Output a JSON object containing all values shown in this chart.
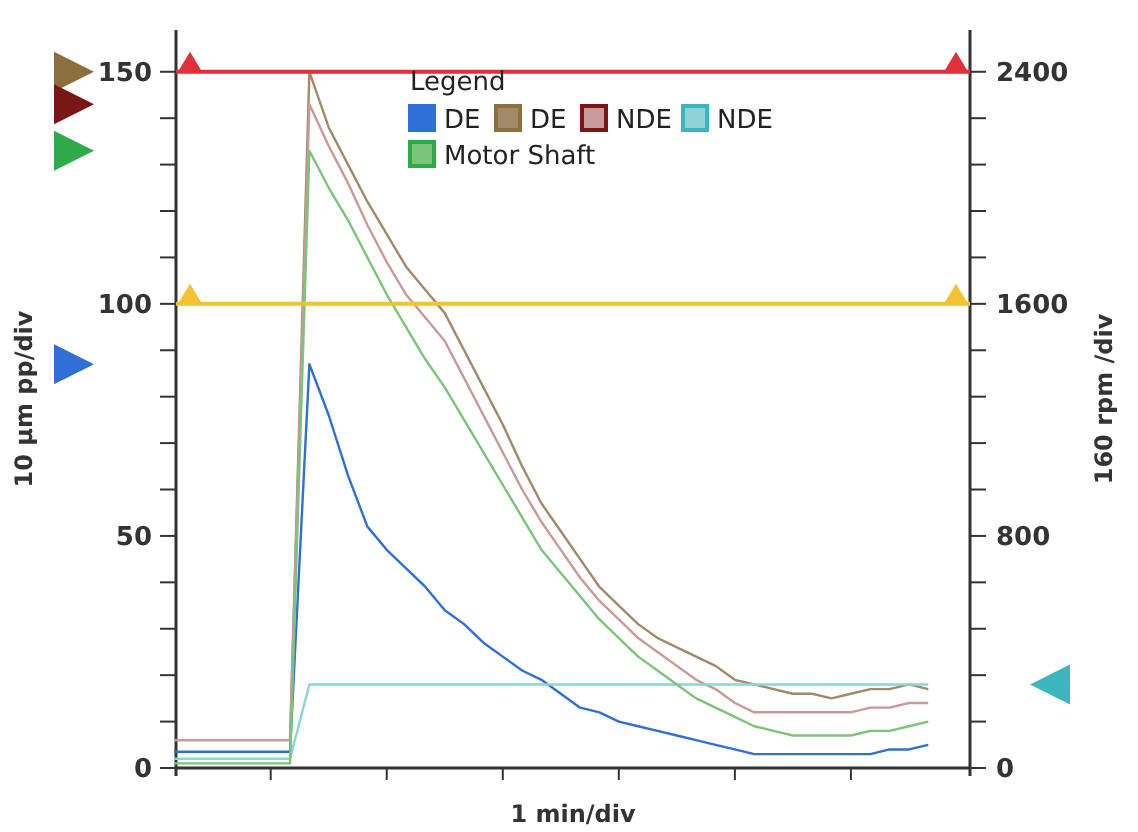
{
  "chart_data": {
    "type": "line",
    "xlabel": "1 min/div",
    "ylabel": "10 µm pp/div",
    "y2label": "160 rpm /div",
    "legend_title": "Legend",
    "legend": "top",
    "categories": [
      null,
      null,
      null,
      null,
      null,
      null,
      null,
      null,
      null,
      null,
      null,
      null,
      null,
      null,
      null,
      null,
      null,
      null,
      null,
      null,
      null,
      null,
      null,
      null,
      null,
      null,
      null,
      null,
      null,
      null,
      null,
      null,
      null,
      null,
      null,
      null,
      null,
      null,
      null,
      null
    ],
    "ylim": [
      0,
      159
    ],
    "yticks": [
      0,
      {
        "value": 10,
        "label": null
      },
      {
        "value": 20,
        "label": null
      },
      {
        "value": 30,
        "label": null
      },
      {
        "value": 40,
        "label": null
      },
      50,
      {
        "value": 60,
        "label": null
      },
      {
        "value": 70,
        "label": null
      },
      {
        "value": 80,
        "label": null
      },
      {
        "value": 90,
        "label": null
      },
      100,
      {
        "value": 110,
        "label": null
      },
      {
        "value": 120,
        "label": null
      },
      {
        "value": 130,
        "label": null
      },
      {
        "value": 140,
        "label": null
      },
      150
    ],
    "y2lim": [
      0,
      2544
    ],
    "y2ticks": [
      0,
      {
        "value": 160,
        "label": null
      },
      {
        "value": 320,
        "label": null
      },
      {
        "value": 480,
        "label": null
      },
      {
        "value": 640,
        "label": null
      },
      800,
      {
        "value": 960,
        "label": null
      },
      {
        "value": 1120,
        "label": null
      },
      {
        "value": 1280,
        "label": null
      },
      {
        "value": 1440,
        "label": null
      },
      1600,
      {
        "value": 1760,
        "label": null
      },
      {
        "value": 1920,
        "label": null
      },
      {
        "value": 2080,
        "label": null
      },
      {
        "value": 2240,
        "label": null
      },
      2400
    ],
    "ref_lines": [
      {
        "axis": "y",
        "value": 150,
        "color": "#e0303a"
      },
      {
        "axis": "y",
        "value": 100,
        "color": "#f2c230"
      }
    ],
    "series": [
      {
        "name": "DE",
        "color": "#2f6fd6",
        "values": [
          3.5,
          3.5,
          3.5,
          3.5,
          3.5,
          3.5,
          3.5,
          87,
          76,
          63,
          52,
          47,
          43,
          39,
          34,
          31,
          27,
          24,
          21,
          19,
          16,
          13,
          12,
          10,
          9,
          8,
          7,
          6,
          5,
          4,
          3,
          3,
          3,
          3,
          3,
          3,
          3,
          4,
          4,
          5
        ]
      },
      {
        "name": "DE",
        "color": "#a08a6a",
        "values": [
          6,
          6,
          6,
          6,
          6,
          6,
          6,
          150,
          138,
          130,
          122,
          115,
          108,
          103,
          98,
          90,
          82,
          74,
          65,
          57,
          51,
          45,
          39,
          35,
          31,
          28,
          26,
          24,
          22,
          19,
          18,
          17,
          16,
          16,
          15,
          16,
          17,
          17,
          18,
          17
        ]
      },
      {
        "name": "NDE",
        "color": "#c89a9a",
        "values": [
          6,
          6,
          6,
          6,
          6,
          6,
          6,
          143,
          134,
          126,
          117,
          109,
          102,
          97,
          92,
          84,
          76,
          68,
          60,
          53,
          47,
          41,
          36,
          32,
          28,
          25,
          22,
          19,
          17,
          14,
          12,
          12,
          12,
          12,
          12,
          12,
          13,
          13,
          14,
          14
        ]
      },
      {
        "name": "NDE",
        "color": "#8fd3d6",
        "axis": "y2",
        "values": [
          32,
          32,
          32,
          32,
          32,
          32,
          32,
          288,
          288,
          288,
          288,
          288,
          288,
          288,
          288,
          288,
          288,
          288,
          288,
          288,
          288,
          288,
          288,
          288,
          288,
          288,
          288,
          288,
          288,
          288,
          288,
          288,
          288,
          288,
          288,
          288,
          288,
          288,
          288,
          288
        ]
      },
      {
        "name": "Motor Shaft",
        "color": "#7cc47c",
        "values": [
          1,
          1,
          1,
          1,
          1,
          1,
          1,
          133,
          125,
          118,
          110,
          102,
          95,
          88,
          82,
          75,
          68,
          61,
          54,
          47,
          42,
          37,
          32,
          28,
          24,
          21,
          18,
          15,
          13,
          11,
          9,
          8,
          7,
          7,
          7,
          7,
          8,
          8,
          9,
          10
        ]
      }
    ]
  }
}
